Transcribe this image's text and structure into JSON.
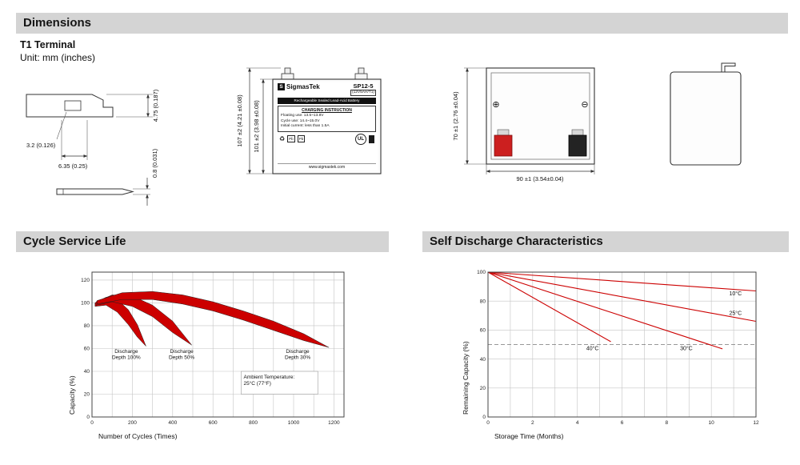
{
  "page": {
    "section1_title": "Dimensions",
    "terminal_type": "T1 Terminal",
    "unit_note": "Unit: mm (inches)",
    "section2_title": "Cycle Service Life",
    "section3_title": "Self Discharge Characteristics"
  },
  "dims": {
    "terminal_height": "4.75 (0.187)",
    "terminal_hole": "3.2 (0.126)",
    "terminal_width": "6.35 (0.25)",
    "terminal_thickness": "0.8 (0.031)",
    "battery_height_total": "107 ±2 (4.21 ±0.08)",
    "battery_height_case": "101 ±2 (3.98 ±0.08)",
    "battery_width": "70 ±1 (2.76 ±0.04)",
    "battery_length": "90 ±1 (3.54±0.04)",
    "plus_symbol": "⊕",
    "minus_symbol": "⊖"
  },
  "label": {
    "logo_letter": "S",
    "brand": "SigmasTek",
    "model": "SP12-5",
    "spec": "(12V5AH/T1)",
    "subtitle": "Rechargeable Sealed Lead-Acid Battery",
    "charging_title": "CHARGING INSTRUCTION",
    "charge_line1": "Floating use: 13.5~13.8V",
    "charge_line2": "Cycle use: 14.4~15.0V",
    "charge_line3": "Initial current: less than 1.5A",
    "recycle_icon": "♻",
    "pb_icon": "Pb",
    "ul_mark": "UL",
    "website": "www.sigmastek.com"
  },
  "chart_data": [
    {
      "type": "area",
      "title": "Cycle Service Life",
      "xlabel": "Number of Cycles (Times)",
      "ylabel": "Capacity (%)",
      "xlim": [
        0,
        1250
      ],
      "ylim": [
        0,
        127
      ],
      "xticks": [
        0,
        200,
        400,
        600,
        800,
        1000,
        1200
      ],
      "yticks": [
        0,
        20,
        40,
        60,
        80,
        100,
        120
      ],
      "xgrid": 100,
      "ygrid": 20,
      "grid": true,
      "band_color": "#cc0000",
      "bands": [
        {
          "name": "discharge-depth-100",
          "upper": [
            [
              15,
              100
            ],
            [
              70,
              105
            ],
            [
              125,
              103
            ],
            [
              180,
              94
            ],
            [
              225,
              81
            ],
            [
              268,
              62
            ]
          ],
          "lower": [
            [
              15,
              97
            ],
            [
              70,
              98
            ],
            [
              125,
              92
            ],
            [
              180,
              81
            ],
            [
              225,
              70
            ],
            [
              268,
              62
            ]
          ]
        },
        {
          "name": "discharge-depth-50",
          "upper": [
            [
              20,
              101
            ],
            [
              100,
              107
            ],
            [
              200,
              106
            ],
            [
              300,
              98
            ],
            [
              400,
              84
            ],
            [
              495,
              63
            ]
          ],
          "lower": [
            [
              20,
              98
            ],
            [
              100,
              101
            ],
            [
              200,
              97
            ],
            [
              300,
              88
            ],
            [
              400,
              74
            ],
            [
              495,
              63
            ]
          ]
        },
        {
          "name": "discharge-depth-30",
          "upper": [
            [
              25,
              102
            ],
            [
              150,
              109
            ],
            [
              300,
              110
            ],
            [
              450,
              107
            ],
            [
              600,
              101
            ],
            [
              750,
              93
            ],
            [
              900,
              84
            ],
            [
              1050,
              73
            ],
            [
              1175,
              61
            ]
          ],
          "lower": [
            [
              25,
              99
            ],
            [
              150,
              103
            ],
            [
              300,
              103
            ],
            [
              450,
              99
            ],
            [
              600,
              93
            ],
            [
              750,
              85
            ],
            [
              900,
              76
            ],
            [
              1050,
              67
            ],
            [
              1175,
              61
            ]
          ]
        }
      ],
      "annotations": [
        {
          "lines": [
            "Discharge",
            "Depth 100%"
          ],
          "x": 170,
          "y": 56
        },
        {
          "lines": [
            "Discharge",
            "Depth 50%"
          ],
          "x": 445,
          "y": 56
        },
        {
          "lines": [
            "Discharge",
            "Depth 30%"
          ],
          "x": 1020,
          "y": 56
        }
      ],
      "note_box": {
        "lines": [
          "Ambient Temperature:",
          "25°C (77°F)"
        ],
        "x1": 740,
        "y1": 20,
        "x2": 1120,
        "y2": 40
      }
    },
    {
      "type": "line",
      "title": "Self Discharge Characteristics",
      "xlabel": "Storage Time (Months)",
      "ylabel": "Remaining Capacity (%)",
      "xlim": [
        0,
        12
      ],
      "ylim": [
        0,
        100
      ],
      "xticks": [
        0,
        2,
        4,
        6,
        8,
        10,
        12
      ],
      "yticks": [
        0,
        20,
        40,
        60,
        80,
        100
      ],
      "xgrid": 1,
      "ygrid": 20,
      "grid": true,
      "line_color": "#cc0000",
      "dashed_y": 50,
      "lines": [
        {
          "name": "10°C",
          "points": [
            [
              0,
              100
            ],
            [
              12,
              87
            ]
          ],
          "label": [
            10.8,
            84
          ]
        },
        {
          "name": "25°C",
          "points": [
            [
              0,
              100
            ],
            [
              12,
              66
            ]
          ],
          "label": [
            10.8,
            70.5
          ]
        },
        {
          "name": "30°C",
          "points": [
            [
              0,
              100
            ],
            [
              10.5,
              47
            ]
          ],
          "label": [
            8.6,
            46
          ]
        },
        {
          "name": "40°C",
          "points": [
            [
              0,
              100
            ],
            [
              5.5,
              52
            ]
          ],
          "label": [
            4.4,
            46
          ]
        }
      ]
    }
  ]
}
